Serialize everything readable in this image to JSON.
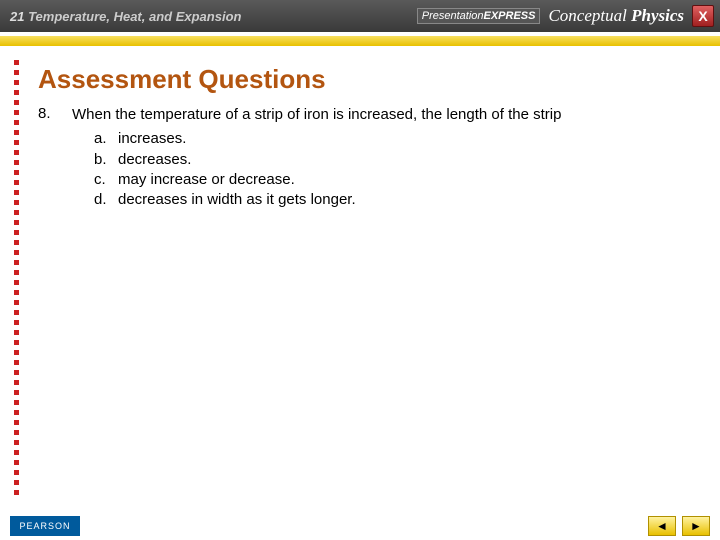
{
  "chapter": {
    "number": "21",
    "title": "Temperature, Heat, and Expansion"
  },
  "brand": {
    "express_label": "Presentation",
    "express_bold": "EXPRESS",
    "book_ital": "Conceptual",
    "book_bold": "Physics",
    "close": "X"
  },
  "heading": "Assessment Questions",
  "question": {
    "number": "8.",
    "stem": "When the temperature of a strip of iron is increased, the length of the strip",
    "options": [
      {
        "letter": "a.",
        "text": "increases."
      },
      {
        "letter": "b.",
        "text": "decreases."
      },
      {
        "letter": "c.",
        "text": "may increase or decrease."
      },
      {
        "letter": "d.",
        "text": "decreases in width as it gets longer."
      }
    ]
  },
  "footer": {
    "pearson": "PEARSON",
    "prev": "◄",
    "next": "►"
  },
  "style": {
    "dot_color": "#cc2020",
    "heading_color": "#b35510"
  }
}
